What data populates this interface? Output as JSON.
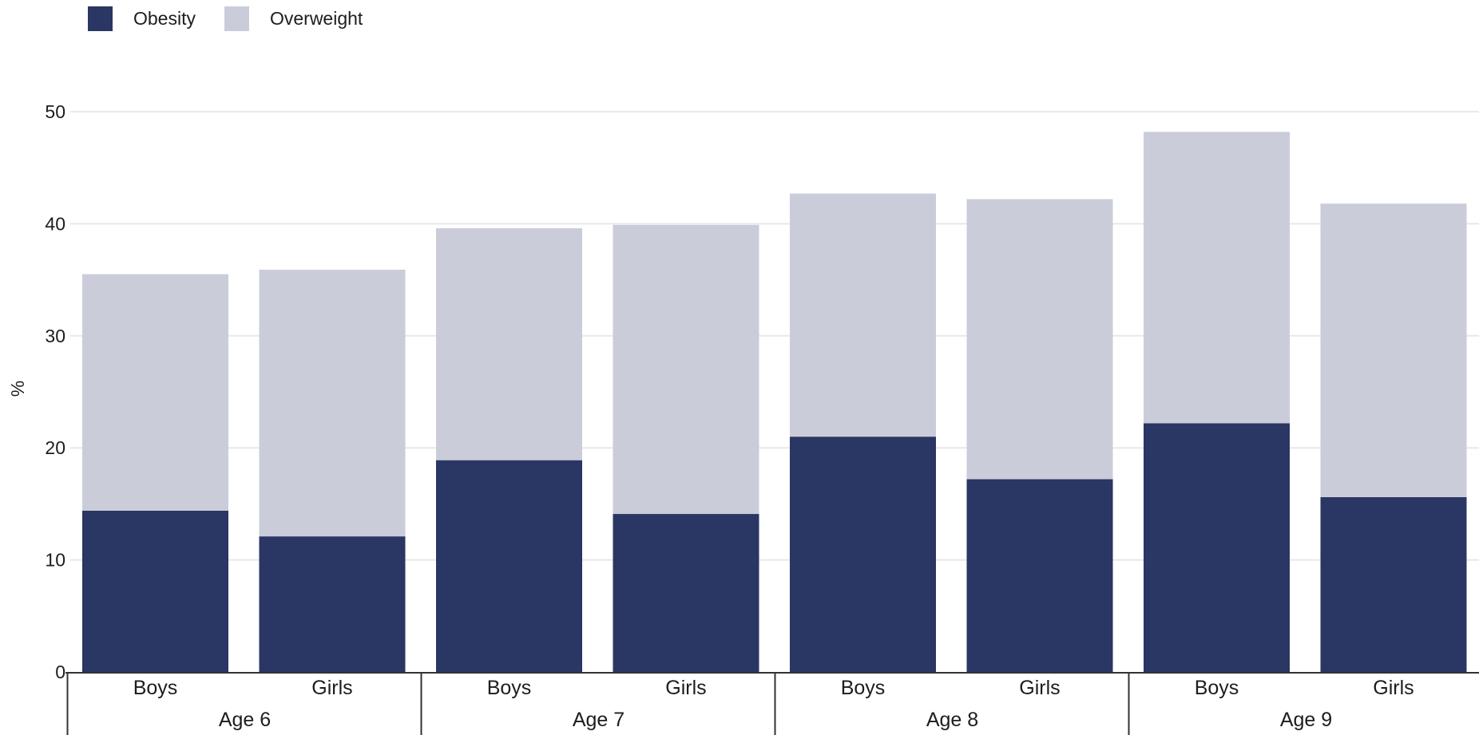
{
  "chart_data": {
    "type": "bar",
    "stacked": true,
    "ylabel": "%",
    "ylim": [
      0,
      50
    ],
    "yticks": [
      0,
      10,
      20,
      30,
      40,
      50
    ],
    "grid": true,
    "legend_position": "top-left",
    "groups": [
      "Age 6",
      "Age 7",
      "Age 8",
      "Age 9"
    ],
    "categories": [
      "Boys",
      "Girls",
      "Boys",
      "Girls",
      "Boys",
      "Girls",
      "Boys",
      "Girls"
    ],
    "series": [
      {
        "name": "Obesity",
        "color": "#2a3663",
        "values": [
          14.4,
          12.1,
          18.9,
          14.1,
          21.0,
          17.2,
          22.2,
          15.6
        ]
      },
      {
        "name": "Overweight",
        "color": "#cacdd9",
        "values": [
          21.1,
          23.8,
          20.7,
          25.8,
          21.7,
          25.0,
          26.0,
          26.2
        ]
      }
    ]
  }
}
